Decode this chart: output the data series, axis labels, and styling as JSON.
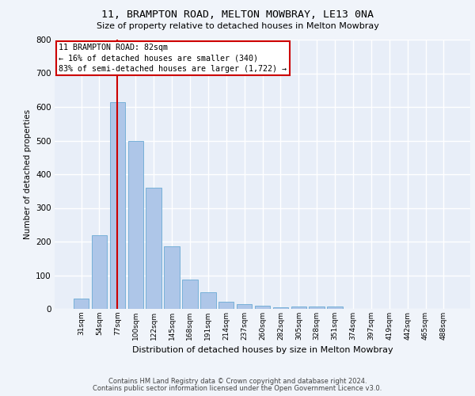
{
  "title1": "11, BRAMPTON ROAD, MELTON MOWBRAY, LE13 0NA",
  "title2": "Size of property relative to detached houses in Melton Mowbray",
  "xlabel": "Distribution of detached houses by size in Melton Mowbray",
  "ylabel": "Number of detached properties",
  "categories": [
    "31sqm",
    "54sqm",
    "77sqm",
    "100sqm",
    "122sqm",
    "145sqm",
    "168sqm",
    "191sqm",
    "214sqm",
    "237sqm",
    "260sqm",
    "282sqm",
    "305sqm",
    "328sqm",
    "351sqm",
    "374sqm",
    "397sqm",
    "419sqm",
    "442sqm",
    "465sqm",
    "488sqm"
  ],
  "values": [
    30,
    220,
    615,
    500,
    360,
    185,
    88,
    50,
    22,
    15,
    10,
    5,
    8,
    8,
    8,
    0,
    0,
    0,
    0,
    0,
    0
  ],
  "bar_color": "#aec6e8",
  "bar_edge_color": "#6aaad4",
  "highlight_bar_index": 2,
  "highlight_line_color": "#cc0000",
  "annotation_text": "11 BRAMPTON ROAD: 82sqm\n← 16% of detached houses are smaller (340)\n83% of semi-detached houses are larger (1,722) →",
  "annotation_box_facecolor": "#ffffff",
  "annotation_box_edgecolor": "#cc0000",
  "ylim": [
    0,
    800
  ],
  "yticks": [
    0,
    100,
    200,
    300,
    400,
    500,
    600,
    700,
    800
  ],
  "footer1": "Contains HM Land Registry data © Crown copyright and database right 2024.",
  "footer2": "Contains public sector information licensed under the Open Government Licence v3.0.",
  "bg_color": "#f0f4fa",
  "plot_bg_color": "#e8eef8",
  "grid_color": "#ffffff"
}
